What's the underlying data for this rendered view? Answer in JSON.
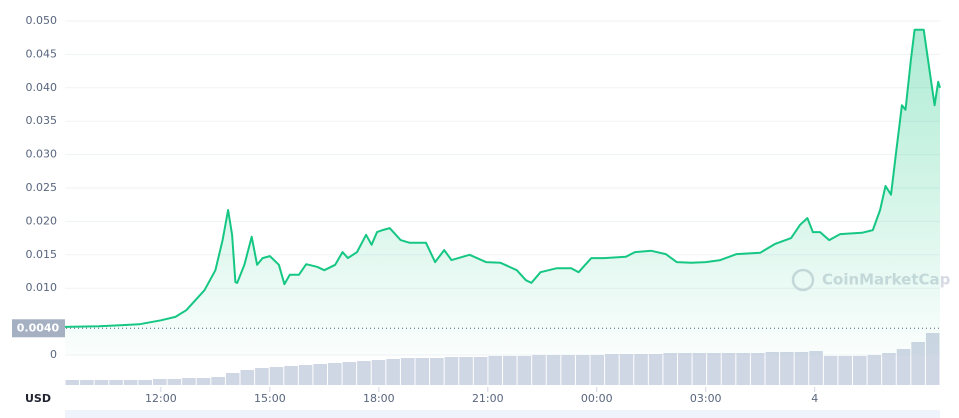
{
  "chart_data": {
    "type": "area",
    "color": "#16c784",
    "grid": true,
    "x": [
      9.36,
      10.3,
      11.4,
      12.0,
      12.4,
      12.7,
      12.9,
      13.2,
      13.5,
      13.7,
      13.85,
      13.96,
      14.05,
      14.1,
      14.3,
      14.5,
      14.65,
      14.8,
      15.0,
      15.25,
      15.4,
      15.55,
      15.8,
      16.0,
      16.3,
      16.5,
      16.8,
      17.0,
      17.15,
      17.4,
      17.65,
      17.8,
      17.95,
      18.1,
      18.3,
      18.6,
      18.85,
      19.3,
      19.55,
      19.8,
      20.0,
      20.5,
      20.95,
      21.35,
      21.8,
      22.05,
      22.2,
      22.45,
      22.9,
      23.3,
      23.5,
      23.85,
      24.2,
      24.8,
      25.05,
      25.5,
      25.9,
      26.2,
      26.6,
      27.0,
      27.4,
      27.85,
      28.5,
      28.9,
      29.35,
      29.6,
      29.8,
      29.95,
      30.15,
      30.4,
      30.7,
      31.3,
      31.6,
      31.8,
      31.95,
      32.1,
      32.25,
      32.4,
      32.5,
      32.65,
      32.75,
      33.0,
      33.2,
      33.3,
      33.4,
      33.45
    ],
    "values": [
      0.0042,
      0.0043,
      0.0046,
      0.0052,
      0.0057,
      0.0067,
      0.0079,
      0.0097,
      0.0127,
      0.0172,
      0.0217,
      0.018,
      0.0109,
      0.0108,
      0.0135,
      0.0177,
      0.0135,
      0.0145,
      0.0148,
      0.0135,
      0.0106,
      0.012,
      0.012,
      0.0136,
      0.0132,
      0.0127,
      0.0135,
      0.0154,
      0.0145,
      0.0154,
      0.018,
      0.0165,
      0.0184,
      0.0187,
      0.019,
      0.0172,
      0.0168,
      0.0168,
      0.0139,
      0.0157,
      0.0142,
      0.015,
      0.0139,
      0.0138,
      0.0127,
      0.0112,
      0.0108,
      0.0124,
      0.013,
      0.013,
      0.0124,
      0.0145,
      0.0145,
      0.0147,
      0.0154,
      0.0156,
      0.0151,
      0.0139,
      0.0138,
      0.0139,
      0.0142,
      0.0151,
      0.0153,
      0.0166,
      0.0175,
      0.0195,
      0.0205,
      0.0184,
      0.0184,
      0.0172,
      0.0181,
      0.0183,
      0.0187,
      0.0217,
      0.0253,
      0.024,
      0.0307,
      0.0374,
      0.0367,
      0.0442,
      0.0487,
      0.0487,
      0.0412,
      0.0374,
      0.0409,
      0.04
    ],
    "xlim": [
      9.36,
      33.45
    ],
    "xticks": [
      {
        "value": 12,
        "label": "12:00"
      },
      {
        "value": 15,
        "label": "15:00"
      },
      {
        "value": 18,
        "label": "18:00"
      },
      {
        "value": 21,
        "label": "21:00"
      },
      {
        "value": 24,
        "label": "00:00"
      },
      {
        "value": 27,
        "label": "03:00"
      },
      {
        "value": 30,
        "label": "4"
      }
    ],
    "ylim": [
      0,
      0.05
    ],
    "yticks": [
      0,
      {
        "value": 0.01,
        "label": "0.010"
      },
      {
        "value": 0.015,
        "label": "0.015"
      },
      {
        "value": 0.02,
        "label": "0.020"
      },
      {
        "value": 0.025,
        "label": "0.025"
      },
      {
        "value": 0.03,
        "label": "0.030"
      },
      {
        "value": 0.035,
        "label": "0.035"
      },
      {
        "value": 0.04,
        "label": "0.040"
      },
      {
        "value": 0.045,
        "label": "0.045"
      },
      {
        "value": 0.05,
        "label": "0.050"
      }
    ],
    "current_price": {
      "value": 0.004,
      "label": "0.0040"
    },
    "currency": "USD",
    "watermark": "CoinMarketCap",
    "volume": {
      "color": "#cfd6e4",
      "values": [
        5,
        5,
        5,
        5,
        5,
        5,
        6,
        6,
        7,
        7,
        8,
        12,
        15,
        17,
        18,
        19,
        20,
        21,
        22,
        23,
        24,
        25,
        26,
        27,
        27,
        27,
        28,
        28,
        28,
        29,
        29,
        29,
        30,
        30,
        30,
        30,
        30,
        31,
        31,
        31,
        31,
        32,
        32,
        32,
        32,
        32,
        32,
        32,
        33,
        33,
        33,
        34,
        29,
        29,
        29,
        30,
        32,
        36,
        43,
        52
      ]
    }
  }
}
